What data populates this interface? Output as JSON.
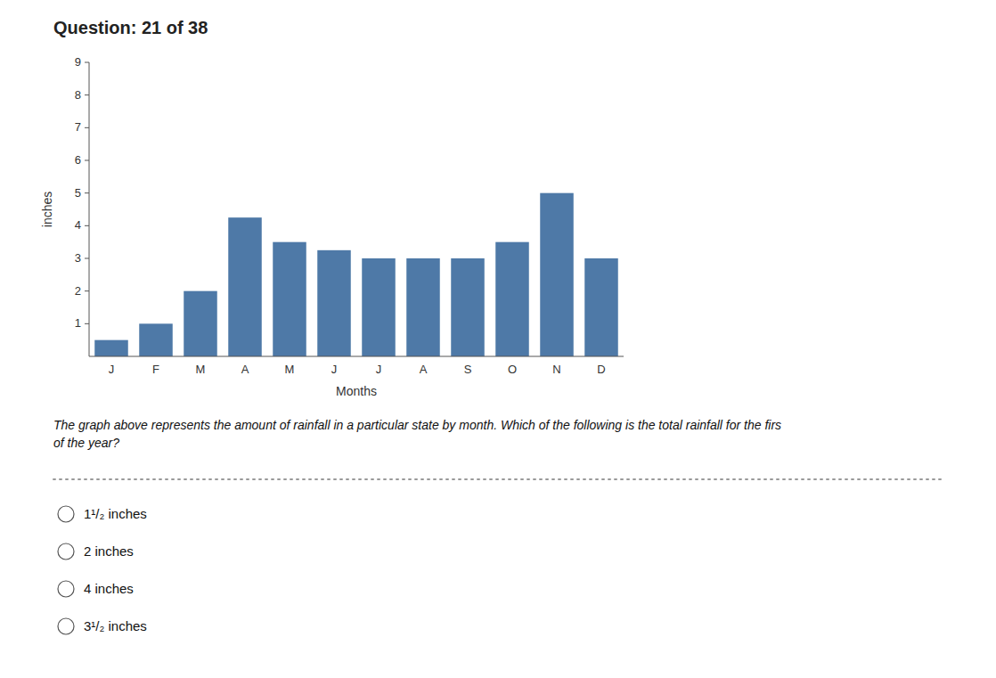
{
  "chart_data": {
    "type": "bar",
    "title": "Question: 21 of 38",
    "categories": [
      "J",
      "F",
      "M",
      "A",
      "M",
      "J",
      "J",
      "A",
      "S",
      "O",
      "N",
      "D"
    ],
    "values": [
      0.5,
      1.0,
      2.0,
      4.25,
      3.5,
      3.25,
      3.0,
      3.0,
      3.0,
      3.5,
      5.0,
      3.0
    ],
    "xlabel": "Months",
    "ylabel": "inches",
    "ylim": [
      0,
      9
    ],
    "yticks": [
      1,
      2,
      3,
      4,
      5,
      6,
      7,
      8,
      9
    ],
    "grid": false,
    "annotations": [
      "The graph above represents the amount of rainfall in a particular state by month. Which of the following is the total rainfall for the firs\nof the year?",
      "1¹/₂ inches",
      "2 inches",
      "4 inches",
      "3¹/₂ inches"
    ]
  }
}
